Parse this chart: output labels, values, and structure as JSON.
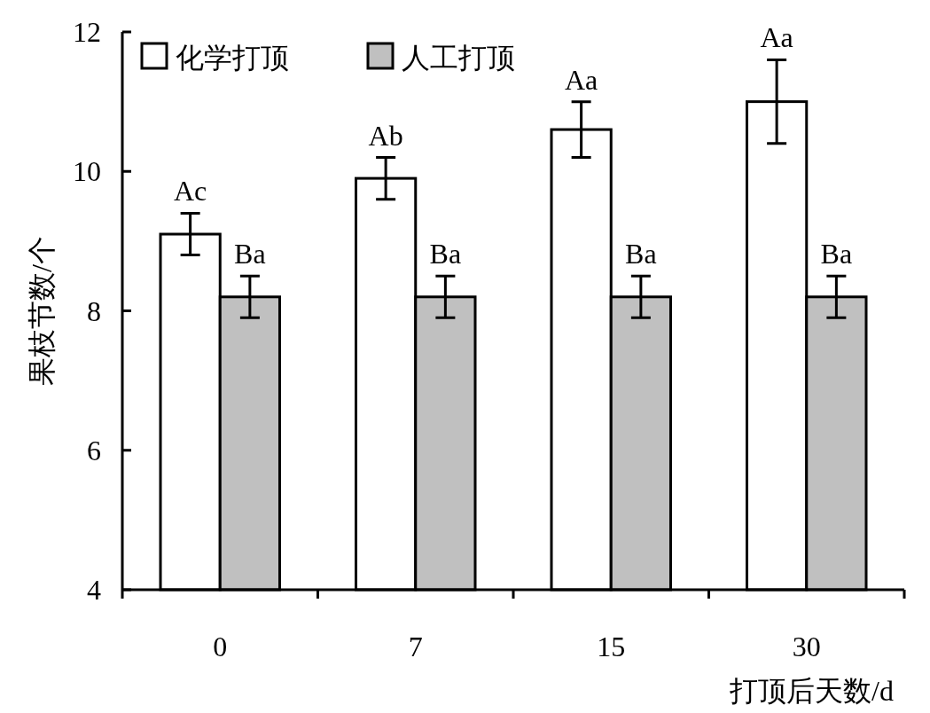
{
  "chart_data": {
    "type": "bar",
    "xlabel": "打顶后天数/d",
    "ylabel": "果枝节数/个",
    "categories": [
      "0",
      "7",
      "15",
      "30"
    ],
    "series": [
      {
        "name": "化学打顶",
        "color": "#ffffff",
        "values": [
          9.1,
          9.9,
          10.6,
          11.0
        ],
        "errors": [
          0.3,
          0.3,
          0.4,
          0.6
        ],
        "value_labels": [
          "Ac",
          "Ab",
          "Aa",
          "Aa"
        ]
      },
      {
        "name": "人工打顶",
        "color": "#c0c0c0",
        "values": [
          8.2,
          8.2,
          8.2,
          8.2
        ],
        "errors": [
          0.3,
          0.3,
          0.3,
          0.3
        ],
        "value_labels": [
          "Ba",
          "Ba",
          "Ba",
          "Ba"
        ]
      }
    ],
    "ylim": [
      4,
      12
    ],
    "yticks": [
      4,
      6,
      8,
      10,
      12
    ],
    "grid": false,
    "legend": "top left"
  }
}
